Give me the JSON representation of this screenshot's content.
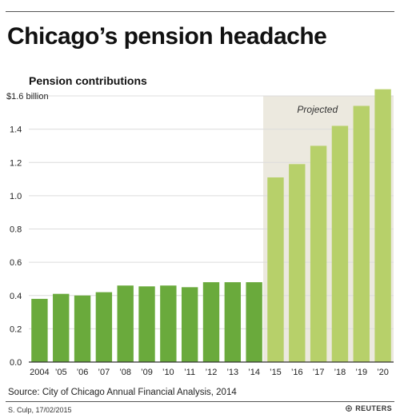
{
  "header": {
    "title": "Chicago’s pension headache"
  },
  "chart_data": {
    "type": "bar",
    "title": "Chicago’s pension headache",
    "subtitle": "Pension contributions",
    "ylabel": "",
    "xlabel": "",
    "ylim": [
      0,
      1.6
    ],
    "y_ticks": [
      0.0,
      0.2,
      0.4,
      0.6,
      0.8,
      1.0,
      1.2,
      1.4,
      1.6
    ],
    "y_tick_labels": [
      "0.0",
      "0.2",
      "0.4",
      "0.6",
      "0.8",
      "1.0",
      "1.2",
      "1.4",
      "$1.6 billion"
    ],
    "categories": [
      "2004",
      "’05",
      "’06",
      "’07",
      "’08",
      "’09",
      "’10",
      "’11",
      "’12",
      "’13",
      "’14",
      "’15",
      "’16",
      "’17",
      "’18",
      "’19",
      "’20"
    ],
    "values": [
      0.38,
      0.41,
      0.4,
      0.42,
      0.46,
      0.455,
      0.46,
      0.45,
      0.48,
      0.48,
      0.48,
      1.11,
      1.19,
      1.3,
      1.42,
      1.54,
      1.64
    ],
    "projected_from": "’15",
    "projected_label": "Projected",
    "grid": true,
    "colors": {
      "actual": "#6aaa3c",
      "projected": "#b7d06a",
      "projected_band": "#ece9df",
      "grid": "#dcdcdc",
      "baseline": "#333333"
    }
  },
  "footer": {
    "source": "Source: City of Chicago Annual Financial Analysis, 2014",
    "credit": "S. Culp, 17/02/2015",
    "brand": "REUTERS"
  }
}
